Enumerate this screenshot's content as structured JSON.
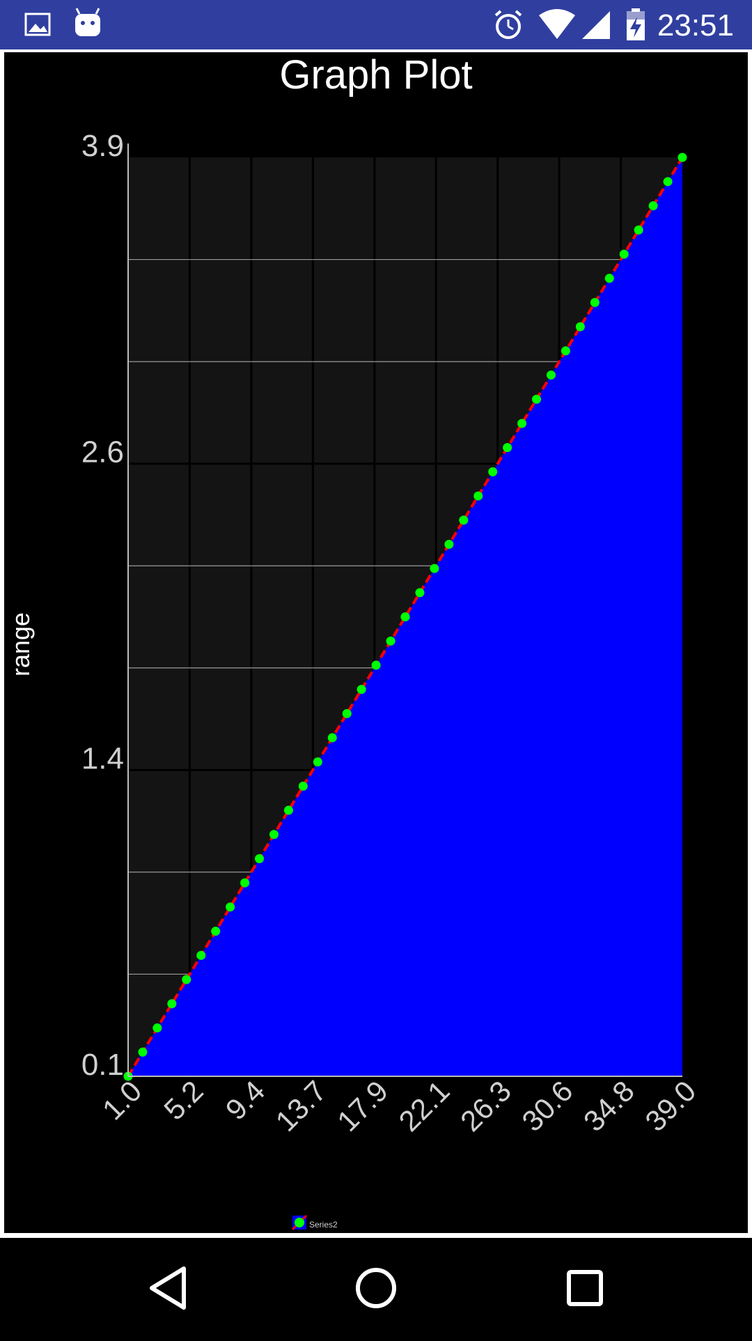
{
  "status_bar": {
    "time": "23:51",
    "left_icons": [
      "image-icon",
      "android-icon"
    ],
    "right_icons": [
      "alarm-icon",
      "wifi-icon",
      "cell-signal-icon",
      "battery-charging-icon"
    ],
    "background": "#303F9F"
  },
  "chart_data": {
    "type": "area",
    "title": "Graph Plot",
    "xlabel": "",
    "ylabel": "range",
    "x_tick_labels": [
      "1.0",
      "5.2",
      "9.4",
      "13.7",
      "17.9",
      "22.1",
      "26.3",
      "30.6",
      "34.8",
      "39.0"
    ],
    "y_tick_labels": [
      "0.1",
      "1.4",
      "2.6",
      "3.9"
    ],
    "xlim": [
      1.0,
      39.0
    ],
    "ylim": [
      0.1,
      3.9
    ],
    "grid": true,
    "legend": {
      "position": "bottom"
    },
    "series": [
      {
        "name": "Series2",
        "fill_color": "#0000FF",
        "line_color": "#FF0000",
        "marker_color": "#00FF00",
        "x": [
          1.0,
          2.0,
          3.0,
          4.0,
          5.0,
          6.0,
          7.0,
          8.0,
          9.0,
          10.0,
          11.0,
          12.0,
          13.0,
          14.0,
          15.0,
          16.0,
          17.0,
          18.0,
          19.0,
          20.0,
          21.0,
          22.0,
          23.0,
          24.0,
          25.0,
          26.0,
          27.0,
          28.0,
          29.0,
          30.0,
          31.0,
          32.0,
          33.0,
          34.0,
          35.0,
          36.0,
          37.0,
          38.0,
          39.0
        ],
        "y": [
          0.1,
          0.2,
          0.3,
          0.4,
          0.5,
          0.6,
          0.7,
          0.8,
          0.9,
          1.0,
          1.1,
          1.2,
          1.3,
          1.4,
          1.5,
          1.6,
          1.7,
          1.8,
          1.9,
          2.0,
          2.1,
          2.2,
          2.3,
          2.4,
          2.5,
          2.6,
          2.7,
          2.8,
          2.9,
          3.0,
          3.1,
          3.2,
          3.3,
          3.4,
          3.5,
          3.6,
          3.7,
          3.8,
          3.9
        ]
      }
    ]
  }
}
